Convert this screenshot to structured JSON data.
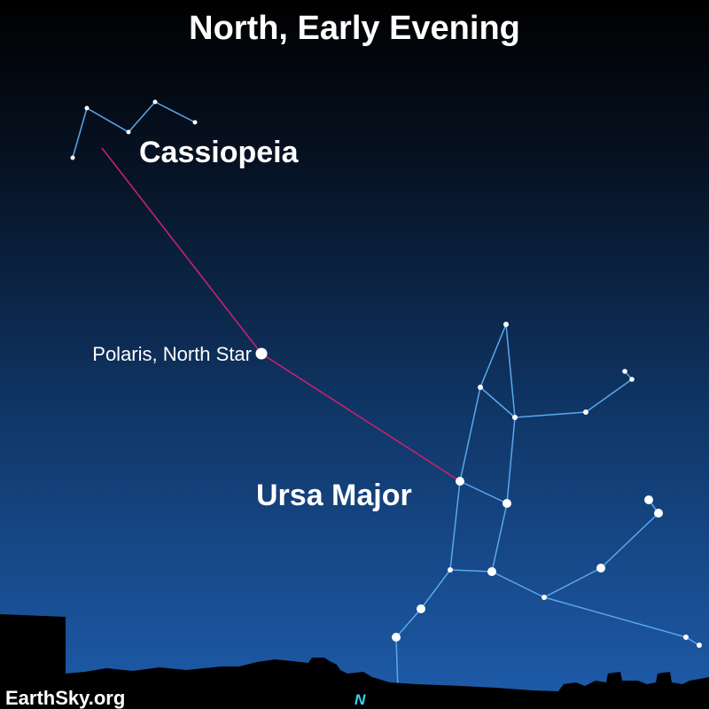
{
  "title": "North, Early Evening",
  "labels": {
    "cassiopeia": "Cassiopeia",
    "polaris": "Polaris, North Star",
    "ursa_major": "Ursa Major"
  },
  "direction": "N",
  "credit": "EarthSky.org",
  "colors": {
    "sky_top": "#000000",
    "sky_bottom": "#1e5cab",
    "constellation_lines": "#5aa8ee",
    "pointer_line": "#c8206e",
    "stars": "#ffffff",
    "direction_text": "#3ad4f0",
    "ground": "#000000"
  }
}
